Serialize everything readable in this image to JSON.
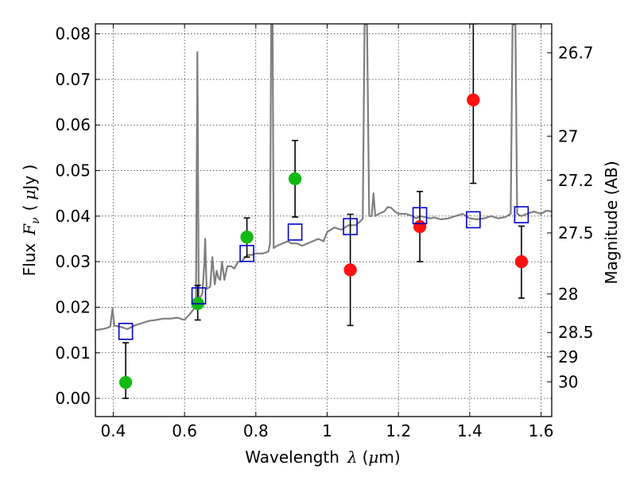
{
  "chart_data": {
    "type": "scatter",
    "xlabel": {
      "prefix": "Wavelength",
      "symbol": "λ",
      "unit_open": "(",
      "unit_mu": "μ",
      "unit_rest": "m)"
    },
    "ylabel": {
      "prefix": "Flux",
      "symbol": "F",
      "subscript": "ν",
      "unit_open": "(",
      "unit_mu": "μ",
      "unit_rest": "Jy )"
    },
    "y2label": "Magnitude (AB)",
    "xlim": [
      0.35,
      1.63
    ],
    "ylim": [
      -0.004,
      0.0822
    ],
    "xticks": [
      0.4,
      0.6,
      0.8,
      1.0,
      1.2,
      1.4,
      1.6
    ],
    "xtick_labels": [
      "0.4",
      "0.6",
      "0.8",
      "1",
      "1.2",
      "1.4",
      "1.6"
    ],
    "yticks": [
      0.0,
      0.01,
      0.02,
      0.03,
      0.04,
      0.05,
      0.06,
      0.07,
      0.08
    ],
    "ytick_labels": [
      "0.00",
      "0.01",
      "0.02",
      "0.03",
      "0.04",
      "0.05",
      "0.06",
      "0.07",
      "0.08"
    ],
    "y2ticks": [
      {
        "label": "26.7",
        "mag": 26.7
      },
      {
        "label": "27",
        "mag": 27.0
      },
      {
        "label": "27.2",
        "mag": 27.2
      },
      {
        "label": "27.5",
        "mag": 27.5
      },
      {
        "label": "28",
        "mag": 28.0
      },
      {
        "label": "28.5",
        "mag": 28.5
      },
      {
        "label": "29",
        "mag": 29.0
      },
      {
        "label": "30",
        "mag": 30.0
      }
    ],
    "grid": true,
    "colors": {
      "green": "#11bb11",
      "red": "#ff1111",
      "model_box": "#0000cc",
      "sed": "#7f7f7f",
      "error": "#000000"
    },
    "series": [
      {
        "marker": "circle",
        "color": "green",
        "points": [
          {
            "x": 0.435,
            "y": 0.0035,
            "err_low": 0.0035,
            "err_high": 0.0087
          },
          {
            "x": 0.637,
            "y": 0.0208,
            "err_low": 0.0036,
            "err_high": 0.004
          },
          {
            "x": 0.775,
            "y": 0.0354,
            "err_low": 0.0044,
            "err_high": 0.0042
          },
          {
            "x": 0.91,
            "y": 0.0482,
            "err_low": 0.0084,
            "err_high": 0.0084
          }
        ]
      },
      {
        "marker": "circle",
        "color": "red",
        "points": [
          {
            "x": 1.065,
            "y": 0.0282,
            "err_low": 0.0122,
            "err_high": 0.0122
          },
          {
            "x": 1.26,
            "y": 0.0377,
            "err_low": 0.0077,
            "err_high": 0.0077
          },
          {
            "x": 1.41,
            "y": 0.0655,
            "err_low": 0.0183,
            "err_high": 0.0167
          },
          {
            "x": 1.545,
            "y": 0.03,
            "err_low": 0.008,
            "err_high": 0.0078
          }
        ]
      },
      {
        "marker": "open-square",
        "color": "model_box",
        "points": [
          {
            "x": 0.435,
            "y": 0.0147
          },
          {
            "x": 0.64,
            "y": 0.0225
          },
          {
            "x": 0.775,
            "y": 0.0318
          },
          {
            "x": 0.91,
            "y": 0.0365
          },
          {
            "x": 1.065,
            "y": 0.0377
          },
          {
            "x": 1.26,
            "y": 0.0401
          },
          {
            "x": 1.41,
            "y": 0.0392
          },
          {
            "x": 1.545,
            "y": 0.0403
          }
        ]
      }
    ],
    "sed_curve": [
      [
        0.35,
        0.015
      ],
      [
        0.37,
        0.0152
      ],
      [
        0.385,
        0.0155
      ],
      [
        0.392,
        0.0158
      ],
      [
        0.398,
        0.0197
      ],
      [
        0.403,
        0.016
      ],
      [
        0.42,
        0.0157
      ],
      [
        0.44,
        0.0152
      ],
      [
        0.46,
        0.016
      ],
      [
        0.48,
        0.0165
      ],
      [
        0.5,
        0.017
      ],
      [
        0.52,
        0.0172
      ],
      [
        0.54,
        0.0175
      ],
      [
        0.56,
        0.0175
      ],
      [
        0.58,
        0.0177
      ],
      [
        0.6,
        0.0172
      ],
      [
        0.615,
        0.0185
      ],
      [
        0.625,
        0.0195
      ],
      [
        0.632,
        0.021
      ],
      [
        0.636,
        0.076
      ],
      [
        0.64,
        0.0215
      ],
      [
        0.65,
        0.023
      ],
      [
        0.655,
        0.029
      ],
      [
        0.658,
        0.035
      ],
      [
        0.662,
        0.024
      ],
      [
        0.672,
        0.0245
      ],
      [
        0.678,
        0.031
      ],
      [
        0.685,
        0.025
      ],
      [
        0.69,
        0.028
      ],
      [
        0.695,
        0.0265
      ],
      [
        0.7,
        0.026
      ],
      [
        0.705,
        0.03
      ],
      [
        0.712,
        0.026
      ],
      [
        0.72,
        0.029
      ],
      [
        0.73,
        0.029
      ],
      [
        0.74,
        0.0285
      ],
      [
        0.75,
        0.03
      ],
      [
        0.76,
        0.03
      ],
      [
        0.77,
        0.031
      ],
      [
        0.78,
        0.0315
      ],
      [
        0.79,
        0.0315
      ],
      [
        0.8,
        0.0318
      ],
      [
        0.82,
        0.0318
      ],
      [
        0.835,
        0.0322
      ],
      [
        0.84,
        0.034
      ],
      [
        0.843,
        0.082
      ],
      [
        0.847,
        0.082
      ],
      [
        0.85,
        0.033
      ],
      [
        0.86,
        0.0335
      ],
      [
        0.875,
        0.034
      ],
      [
        0.89,
        0.0345
      ],
      [
        0.9,
        0.034
      ],
      [
        0.915,
        0.034
      ],
      [
        0.93,
        0.0335
      ],
      [
        0.945,
        0.034
      ],
      [
        0.96,
        0.0345
      ],
      [
        0.975,
        0.035
      ],
      [
        0.99,
        0.0345
      ],
      [
        1.0,
        0.0365
      ],
      [
        1.02,
        0.0375
      ],
      [
        1.04,
        0.037
      ],
      [
        1.06,
        0.038
      ],
      [
        1.08,
        0.038
      ],
      [
        1.095,
        0.039
      ],
      [
        1.1,
        0.0395
      ],
      [
        1.105,
        0.082
      ],
      [
        1.112,
        0.082
      ],
      [
        1.118,
        0.04
      ],
      [
        1.125,
        0.04
      ],
      [
        1.13,
        0.045
      ],
      [
        1.135,
        0.04
      ],
      [
        1.145,
        0.0405
      ],
      [
        1.16,
        0.041
      ],
      [
        1.17,
        0.042
      ],
      [
        1.18,
        0.0418
      ],
      [
        1.19,
        0.041
      ],
      [
        1.2,
        0.0405
      ],
      [
        1.22,
        0.0405
      ],
      [
        1.24,
        0.04
      ],
      [
        1.25,
        0.0395
      ],
      [
        1.26,
        0.04
      ],
      [
        1.275,
        0.0398
      ],
      [
        1.29,
        0.0395
      ],
      [
        1.3,
        0.0397
      ],
      [
        1.32,
        0.0393
      ],
      [
        1.34,
        0.0395
      ],
      [
        1.36,
        0.04
      ],
      [
        1.38,
        0.0405
      ],
      [
        1.4,
        0.0395
      ],
      [
        1.42,
        0.0393
      ],
      [
        1.44,
        0.0395
      ],
      [
        1.46,
        0.04
      ],
      [
        1.48,
        0.0395
      ],
      [
        1.5,
        0.0398
      ],
      [
        1.515,
        0.0405
      ],
      [
        1.52,
        0.082
      ],
      [
        1.528,
        0.082
      ],
      [
        1.533,
        0.0405
      ],
      [
        1.545,
        0.04
      ],
      [
        1.56,
        0.0405
      ],
      [
        1.58,
        0.041
      ],
      [
        1.6,
        0.0405
      ],
      [
        1.615,
        0.0412
      ],
      [
        1.63,
        0.041
      ]
    ]
  }
}
